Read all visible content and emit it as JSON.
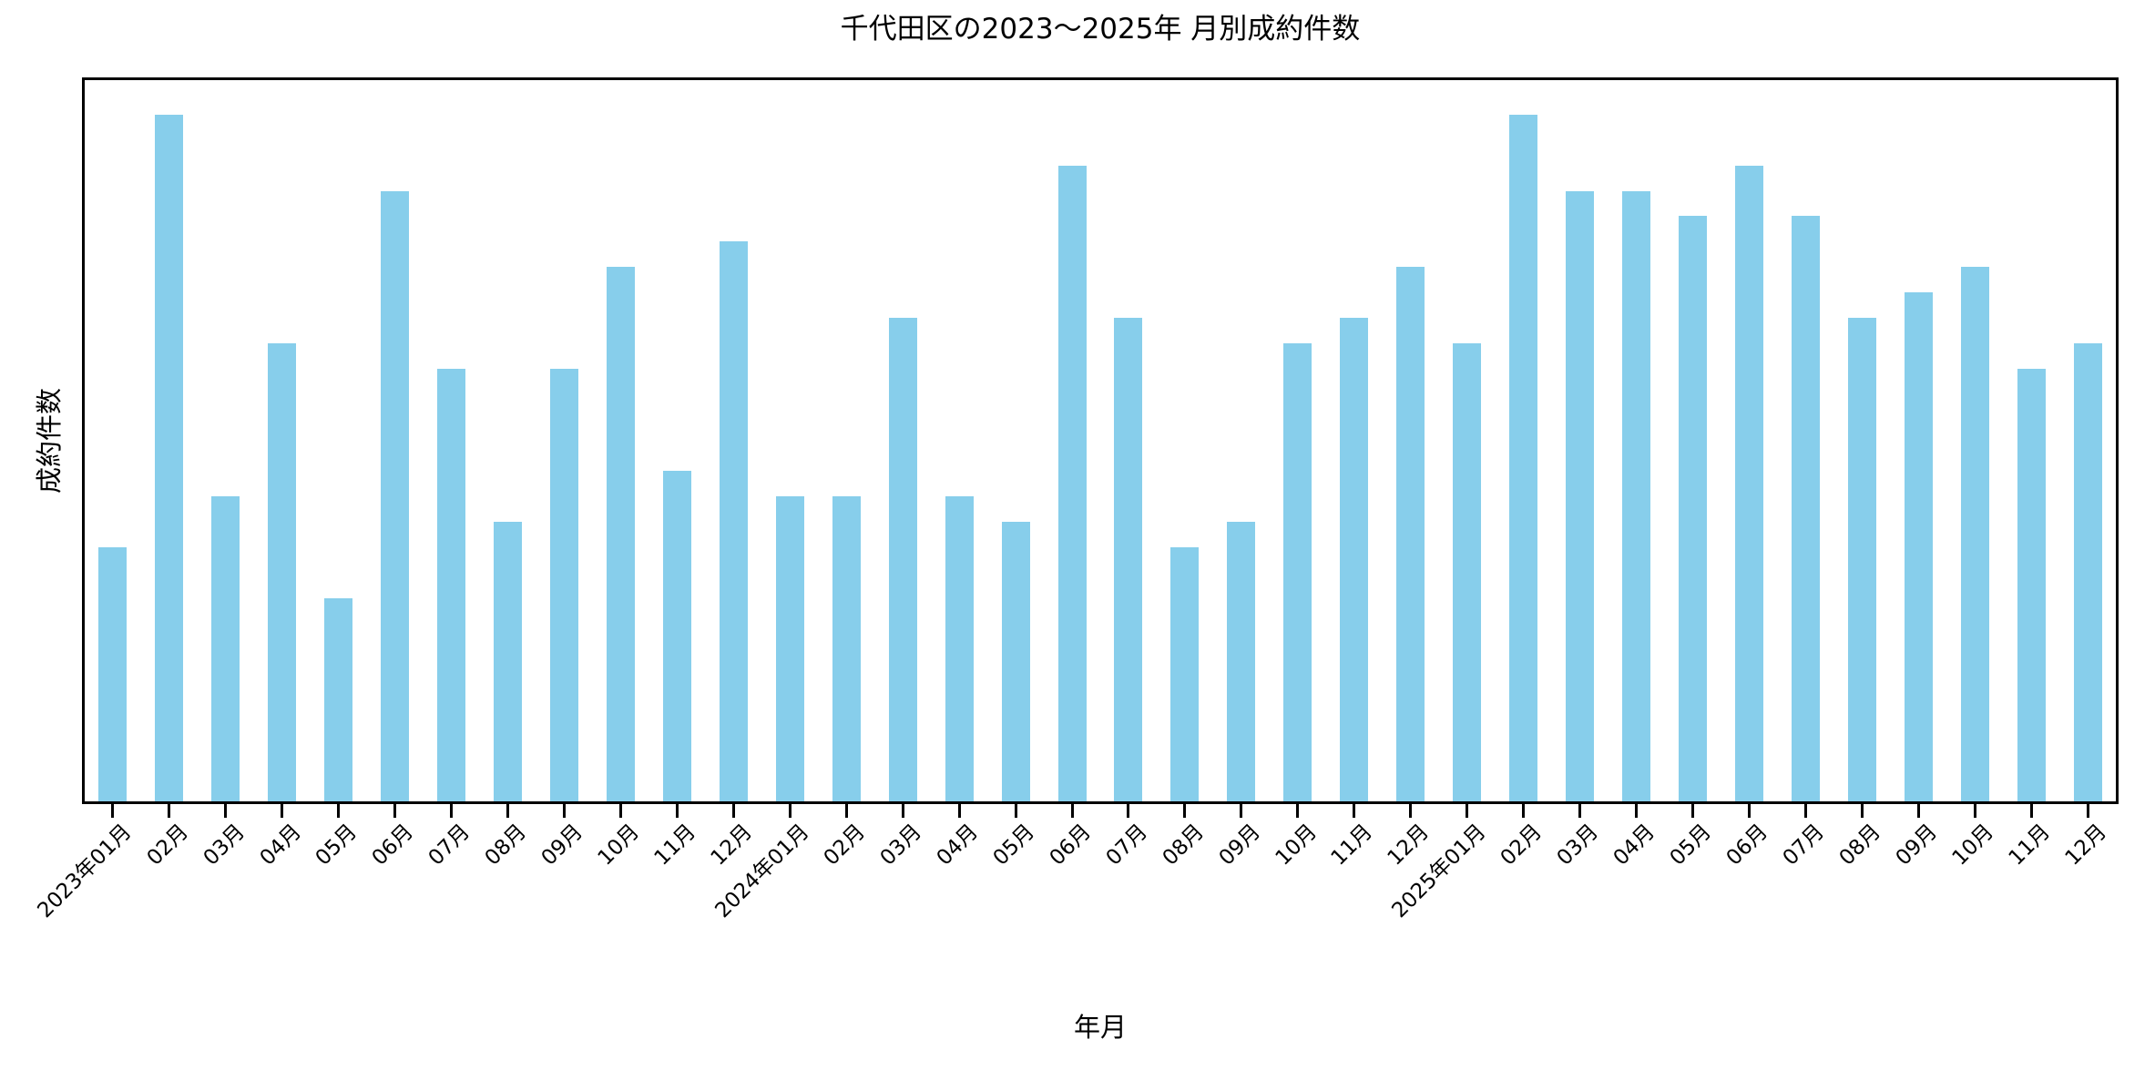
{
  "chart_data": {
    "type": "bar",
    "title": "千代田区の2023〜2025年 月別成約件数",
    "xlabel": "年月",
    "ylabel": "成約件数",
    "series_name": "成約件数",
    "categories": [
      "2023年01月",
      "02月",
      "03月",
      "04月",
      "05月",
      "06月",
      "07月",
      "08月",
      "09月",
      "10月",
      "11月",
      "12月",
      "2024年01月",
      "02月",
      "03月",
      "04月",
      "05月",
      "06月",
      "07月",
      "08月",
      "09月",
      "10月",
      "11月",
      "12月",
      "2025年01月",
      "02月",
      "03月",
      "04月",
      "05月",
      "06月",
      "07月",
      "08月",
      "09月",
      "10月",
      "11月",
      "12月"
    ],
    "values": [
      10,
      27,
      12,
      18,
      8,
      24,
      17,
      11,
      17,
      21,
      13,
      22,
      12,
      12,
      19,
      12,
      11,
      25,
      19,
      10,
      11,
      18,
      19,
      21,
      18,
      27,
      24,
      24,
      23,
      25,
      23,
      19,
      20,
      21,
      17,
      18
    ],
    "ylim": [
      0,
      28.35
    ],
    "bar_color": "#87CEEB",
    "axis_color": "#000000",
    "grid": false,
    "legend": false,
    "y_tick_labels_visible": false,
    "x_tick_rotation_deg": 45,
    "bar_width_fraction": 0.5
  }
}
